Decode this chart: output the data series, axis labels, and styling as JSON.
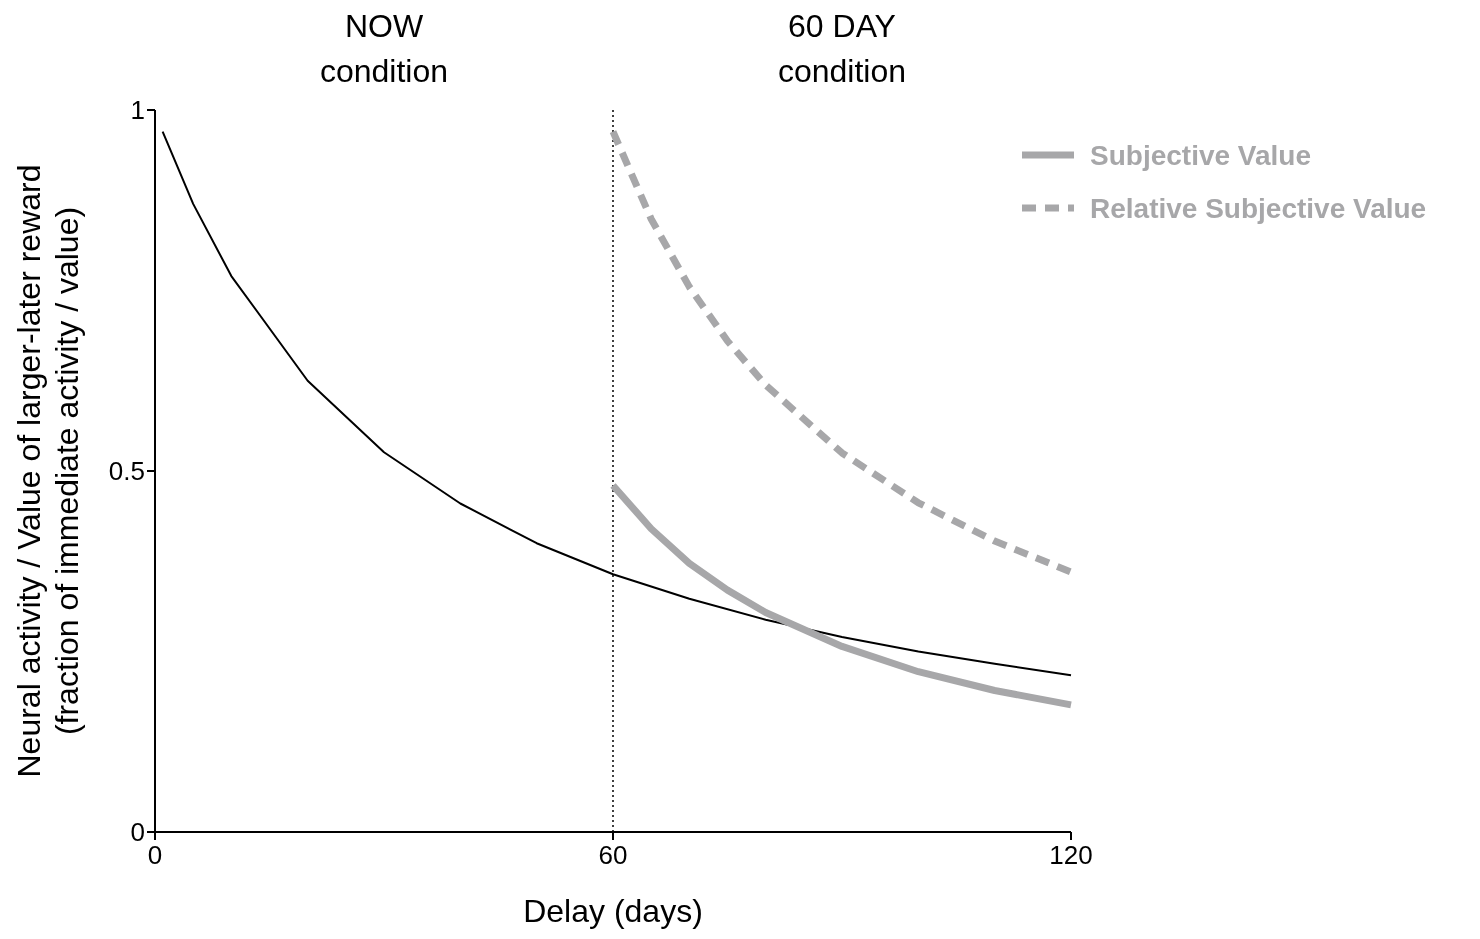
{
  "chart_data": {
    "type": "line",
    "xlabel": "Delay (days)",
    "ylabel": "Neural activity / Value of larger-later reward\n(fraction of immediate activity / value)",
    "xlim": [
      0,
      120
    ],
    "xticks": [
      0,
      60,
      120
    ],
    "ylim": [
      0,
      1
    ],
    "yticks": [
      0,
      0.5,
      1
    ],
    "grid": false,
    "legend": "top right",
    "annotations": [
      "NOW\ncondition",
      "60 DAY\ncondition"
    ],
    "ref_lines": [
      {
        "axis": "x",
        "value": 60,
        "color": "#000000",
        "line_style": "dotted"
      }
    ],
    "series": [
      {
        "color": "#000000",
        "line_style": "solid",
        "x": [
          1,
          5,
          10,
          20,
          30,
          40,
          50,
          60,
          70,
          80,
          90,
          100,
          110,
          120
        ],
        "values": [
          0.97,
          0.87,
          0.77,
          0.625,
          0.526,
          0.455,
          0.4,
          0.357,
          0.323,
          0.294,
          0.27,
          0.25,
          0.233,
          0.217
        ]
      },
      {
        "name": "Subjective Value",
        "color": "#a7a7a9",
        "line_style": "solid",
        "x": [
          60,
          65,
          70,
          75,
          80,
          90,
          100,
          110,
          120
        ],
        "values": [
          0.48,
          0.42,
          0.372,
          0.335,
          0.304,
          0.257,
          0.222,
          0.196,
          0.176
        ]
      },
      {
        "name": "Relative Subjective Value",
        "color": "#a7a7a9",
        "line_style": "dashed",
        "x": [
          60,
          65,
          70,
          75,
          80,
          90,
          100,
          110,
          120
        ],
        "values": [
          0.97,
          0.849,
          0.755,
          0.68,
          0.619,
          0.525,
          0.456,
          0.403,
          0.36
        ]
      }
    ]
  }
}
